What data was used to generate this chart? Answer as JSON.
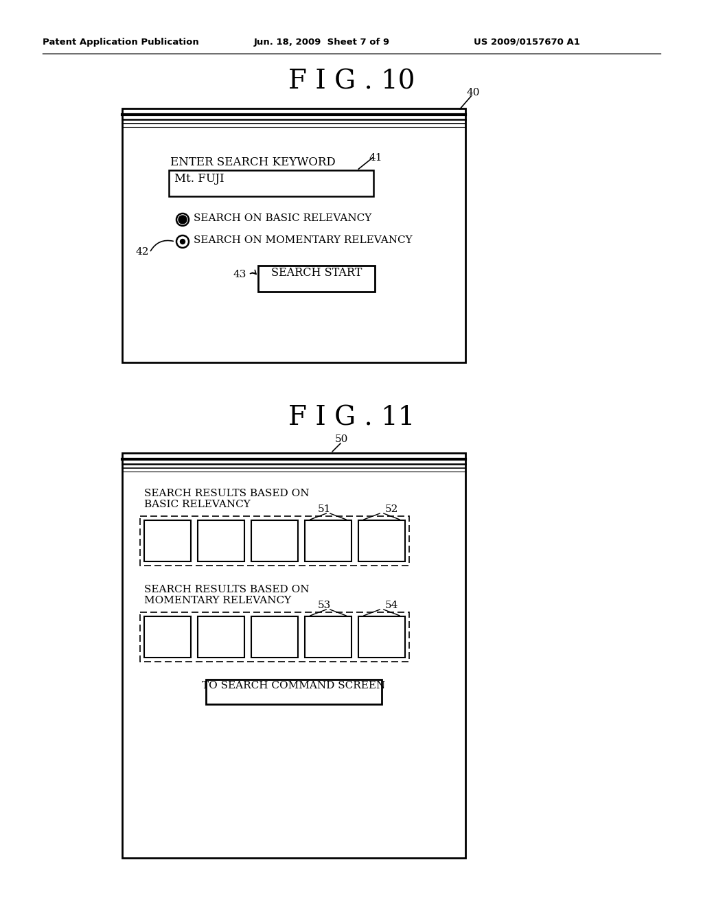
{
  "bg_color": "#ffffff",
  "header_left": "Patent Application Publication",
  "header_center": "Jun. 18, 2009  Sheet 7 of 9",
  "header_right": "US 2009/0157670 A1",
  "fig10_title": "F I G . 10",
  "fig11_title": "F I G . 11",
  "fig10_label": "40",
  "fig11_label": "50",
  "label_41": "41",
  "label_42": "42",
  "label_43": "43",
  "label_51": "51",
  "label_52": "52",
  "label_53": "53",
  "label_54": "54",
  "text_enter_keyword": "ENTER SEARCH KEYWORD",
  "text_mt_fuji": "Mt. FUJI",
  "text_basic_radio": "SEARCH ON BASIC RELEVANCY",
  "text_momentary_radio": "SEARCH ON MOMENTARY RELEVANCY",
  "text_search_start": "SEARCH START",
  "text_basic_results": "SEARCH RESULTS BASED ON\nBASIC RELEVANCY",
  "text_momentary_results": "SEARCH RESULTS BASED ON\nMOMENTARY RELEVANCY",
  "text_command_screen": "TO SEARCH COMMAND SCREEN"
}
